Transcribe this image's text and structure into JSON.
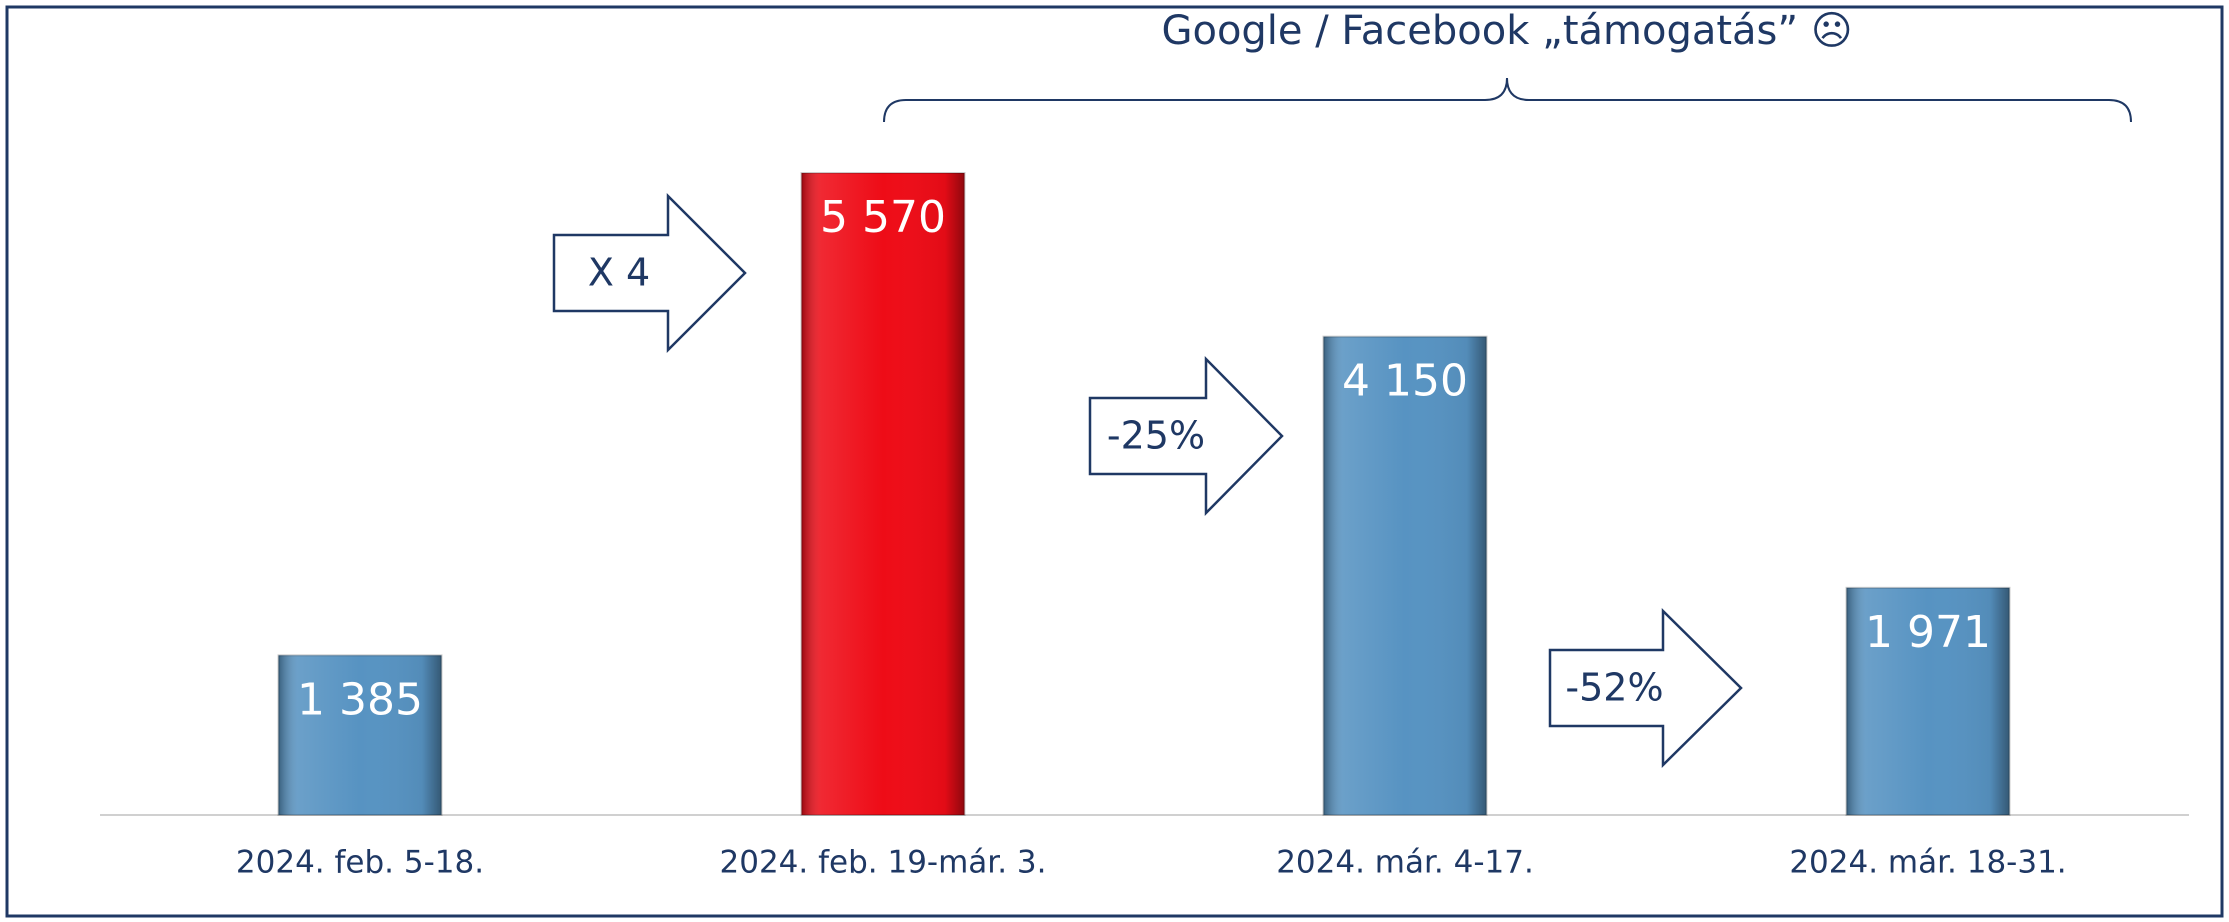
{
  "chart_data": {
    "type": "bar",
    "title": "Google / Facebook „támogatás” ☹",
    "categories": [
      "2024. feb. 5-18.",
      "2024. feb. 19-már. 3.",
      "2024. már. 4-17.",
      "2024. már. 18-31."
    ],
    "values": [
      1385,
      5570,
      4150,
      1971
    ],
    "value_labels": [
      "1 385",
      "5 570",
      "4 150",
      "1 971"
    ],
    "colors": [
      "#5793c2",
      "#ee0c17",
      "#5793c2",
      "#5793c2"
    ],
    "annotations": [
      "X 4",
      "-25%",
      "-52%"
    ]
  }
}
